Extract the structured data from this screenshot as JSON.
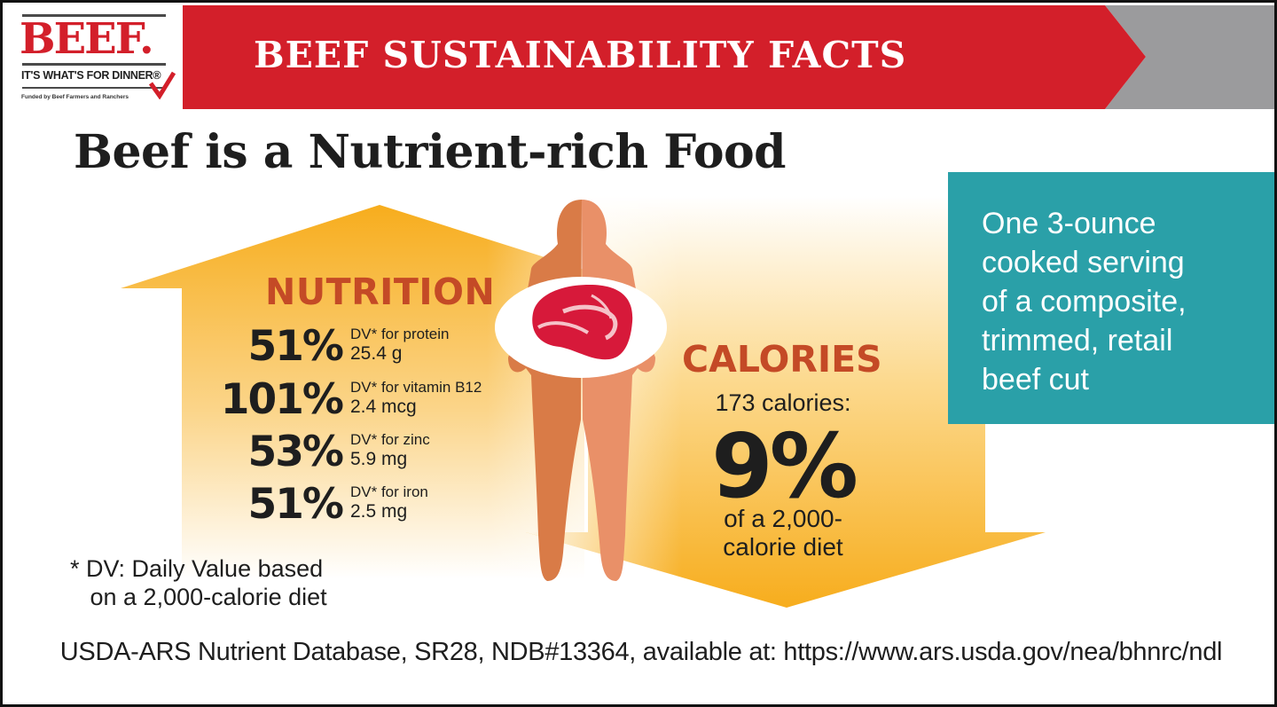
{
  "logo": {
    "word": "BEEF.",
    "tagline": "IT'S WHAT'S FOR DINNER®",
    "funded": "Funded by Beef Farmers and Ranchers"
  },
  "banner": {
    "title": "BEEF SUSTAINABILITY FACTS"
  },
  "heading": "Beef is a Nutrient-rich Food",
  "nutrition": {
    "title": "NUTRITION",
    "items": [
      {
        "percent": "51%",
        "label": "DV* for protein",
        "amount": "25.4 g"
      },
      {
        "percent": "101%",
        "label": "DV* for vitamin B12",
        "amount": "2.4 mcg"
      },
      {
        "percent": "53%",
        "label": "DV* for zinc",
        "amount": "5.9 mg"
      },
      {
        "percent": "51%",
        "label": "DV* for iron",
        "amount": "2.5 mg"
      }
    ]
  },
  "footnote": "* DV: Daily Value based\n   on a 2,000-calorie diet",
  "calories": {
    "title": "CALORIES",
    "count": "173 calories:",
    "percent": "9%",
    "note": "of a 2,000-calorie diet",
    "note_line1": "of a 2,000-",
    "note_line2": "calorie diet"
  },
  "serving": {
    "line1": "One 3-ounce",
    "line2": "cooked serving",
    "line3": "of a composite,",
    "line4": "trimmed, retail",
    "line5": "beef cut"
  },
  "source": "USDA-ARS Nutrient Database, SR28, NDB#13364, available at: https://www.ars.usda.gov/nea/bhnrc/ndl",
  "colors": {
    "brand_red": "#d31f2a",
    "banner_gray": "#9b9b9d",
    "teal": "#2aa0a8",
    "heading_orange": "#c44a26",
    "arrow_yellow": "#f7ad1d",
    "figure_dark": "#d97b47",
    "figure_light": "#e99068",
    "meat_red": "#d7193a"
  },
  "icons": [
    "beef-logo",
    "checkmark-icon",
    "up-arrow-graphic",
    "down-arrow-graphic",
    "person-figure-icon",
    "steak-on-plate-icon"
  ]
}
